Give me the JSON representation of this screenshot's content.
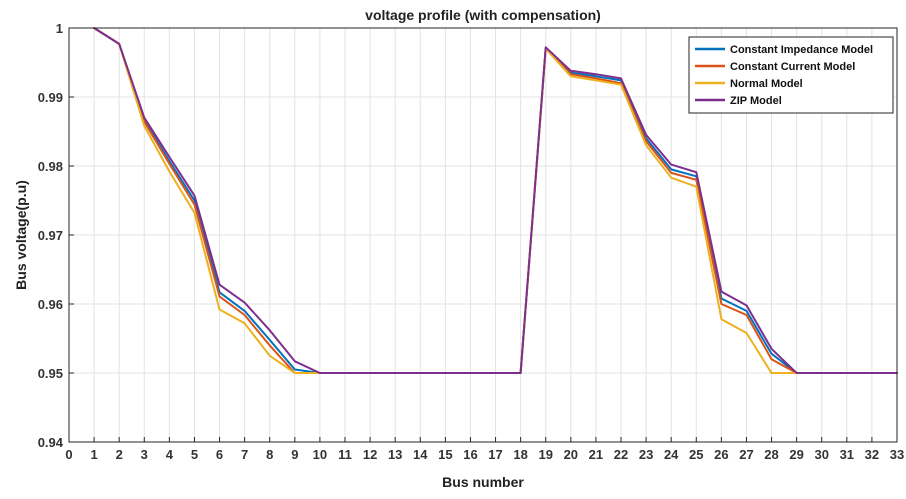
{
  "chart_data": {
    "type": "line",
    "title": "voltage profile (with compensation)",
    "xlabel": "Bus number",
    "ylabel": "Bus voltage(p.u)",
    "xlim": [
      0,
      33
    ],
    "ylim": [
      0.94,
      1.0
    ],
    "x_ticks": [
      0,
      1,
      2,
      3,
      4,
      5,
      6,
      7,
      8,
      9,
      10,
      11,
      12,
      13,
      14,
      15,
      16,
      17,
      18,
      19,
      20,
      21,
      22,
      23,
      24,
      25,
      26,
      27,
      28,
      29,
      30,
      31,
      32,
      33
    ],
    "y_ticks": [
      0.94,
      0.95,
      0.96,
      0.97,
      0.98,
      0.99,
      1
    ],
    "y_tick_labels": [
      "0.94",
      "0.95",
      "0.96",
      "0.97",
      "0.98",
      "0.99",
      "1"
    ],
    "grid": true,
    "legend_position": "top-right",
    "x": [
      1,
      2,
      3,
      4,
      5,
      6,
      7,
      8,
      9,
      10,
      11,
      12,
      13,
      14,
      15,
      16,
      17,
      18,
      19,
      20,
      21,
      22,
      23,
      24,
      25,
      26,
      27,
      28,
      29,
      30,
      31,
      32,
      33
    ],
    "series": [
      {
        "name": "Constant Impedance Model",
        "color": "#0072BD",
        "values": [
          1.0,
          0.9977,
          0.9866,
          0.9807,
          0.975,
          0.9617,
          0.959,
          0.9548,
          0.9505,
          0.95,
          0.95,
          0.95,
          0.95,
          0.95,
          0.95,
          0.95,
          0.95,
          0.95,
          0.997,
          0.9935,
          0.993,
          0.9924,
          0.984,
          0.9795,
          0.9785,
          0.9608,
          0.959,
          0.9528,
          0.95,
          0.95,
          0.95,
          0.95,
          0.95
        ]
      },
      {
        "name": "Constant Current Model",
        "color": "#D95319",
        "values": [
          1.0,
          0.9977,
          0.9864,
          0.9803,
          0.9744,
          0.9611,
          0.9584,
          0.954,
          0.95,
          0.95,
          0.95,
          0.95,
          0.95,
          0.95,
          0.95,
          0.95,
          0.95,
          0.95,
          0.997,
          0.9933,
          0.9927,
          0.992,
          0.9836,
          0.979,
          0.978,
          0.96,
          0.9584,
          0.952,
          0.95,
          0.95,
          0.95,
          0.95,
          0.95
        ]
      },
      {
        "name": "Normal Model",
        "color": "#EDB120",
        "values": [
          1.0,
          0.9977,
          0.9858,
          0.9792,
          0.9732,
          0.9592,
          0.9572,
          0.9525,
          0.95,
          0.95,
          0.95,
          0.95,
          0.95,
          0.95,
          0.95,
          0.95,
          0.95,
          0.95,
          0.997,
          0.993,
          0.9924,
          0.9918,
          0.983,
          0.9783,
          0.977,
          0.9578,
          0.9558,
          0.95,
          0.95,
          0.95,
          0.95,
          0.95,
          0.95
        ]
      },
      {
        "name": "ZIP Model",
        "color": "#7E2F8E",
        "values": [
          1.0,
          0.9977,
          0.987,
          0.9813,
          0.9757,
          0.9628,
          0.9602,
          0.9562,
          0.9517,
          0.95,
          0.95,
          0.95,
          0.95,
          0.95,
          0.95,
          0.95,
          0.95,
          0.95,
          0.9972,
          0.9938,
          0.9933,
          0.9927,
          0.9845,
          0.9802,
          0.9791,
          0.9618,
          0.9598,
          0.9535,
          0.95,
          0.95,
          0.95,
          0.95,
          0.95
        ]
      }
    ]
  }
}
